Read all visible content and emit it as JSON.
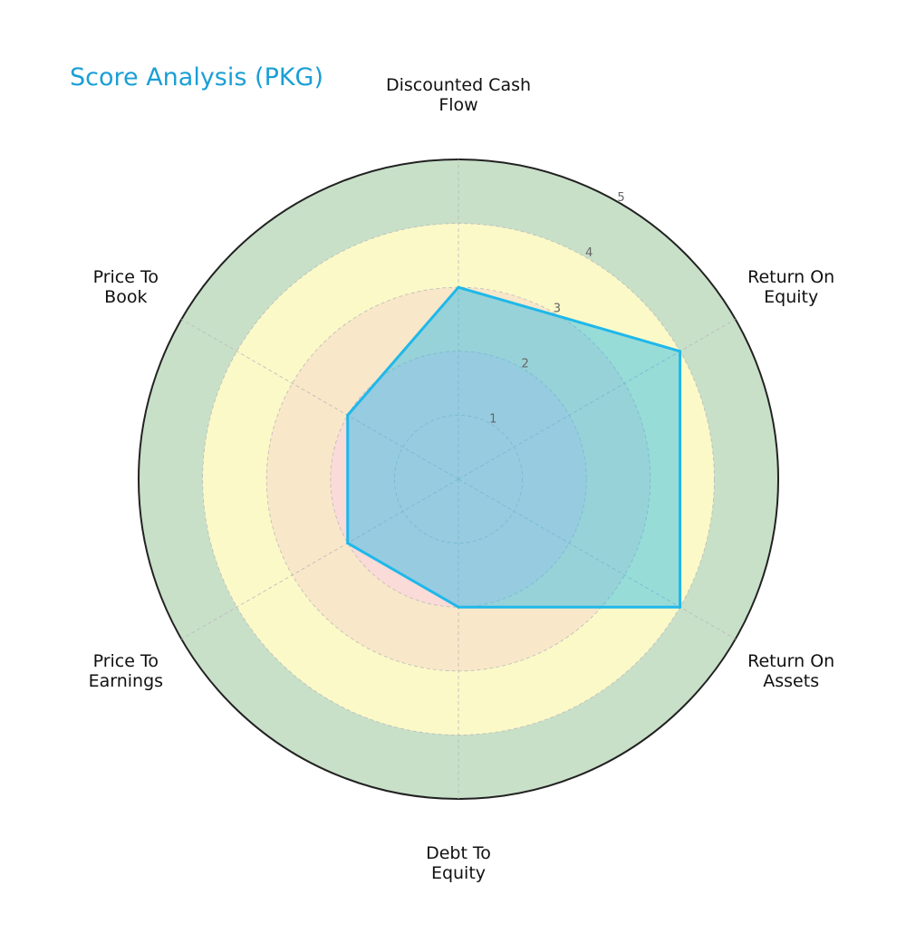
{
  "chart_data": {
    "type": "radar",
    "title": "Score Analysis (PKG)",
    "categories": [
      "Discounted Cash\nFlow",
      "Return On\nEquity",
      "Return On\nAssets",
      "Debt To\nEquity",
      "Price To\nEarnings",
      "Price To\nBook"
    ],
    "values": [
      3,
      4,
      4,
      2,
      2,
      2
    ],
    "rlim": [
      0,
      5
    ],
    "r_ticks": [
      "1",
      "2",
      "3",
      "4",
      "5"
    ],
    "bands": [
      {
        "from": 0,
        "to": 2,
        "color": "#fadbd8"
      },
      {
        "from": 2,
        "to": 3,
        "color": "#f9e7c9"
      },
      {
        "from": 3,
        "to": 4,
        "color": "#fbf9c8"
      },
      {
        "from": 4,
        "to": 5,
        "color": "#c8e0c8"
      }
    ],
    "series_color": "#1fb8ea",
    "grid": true
  }
}
